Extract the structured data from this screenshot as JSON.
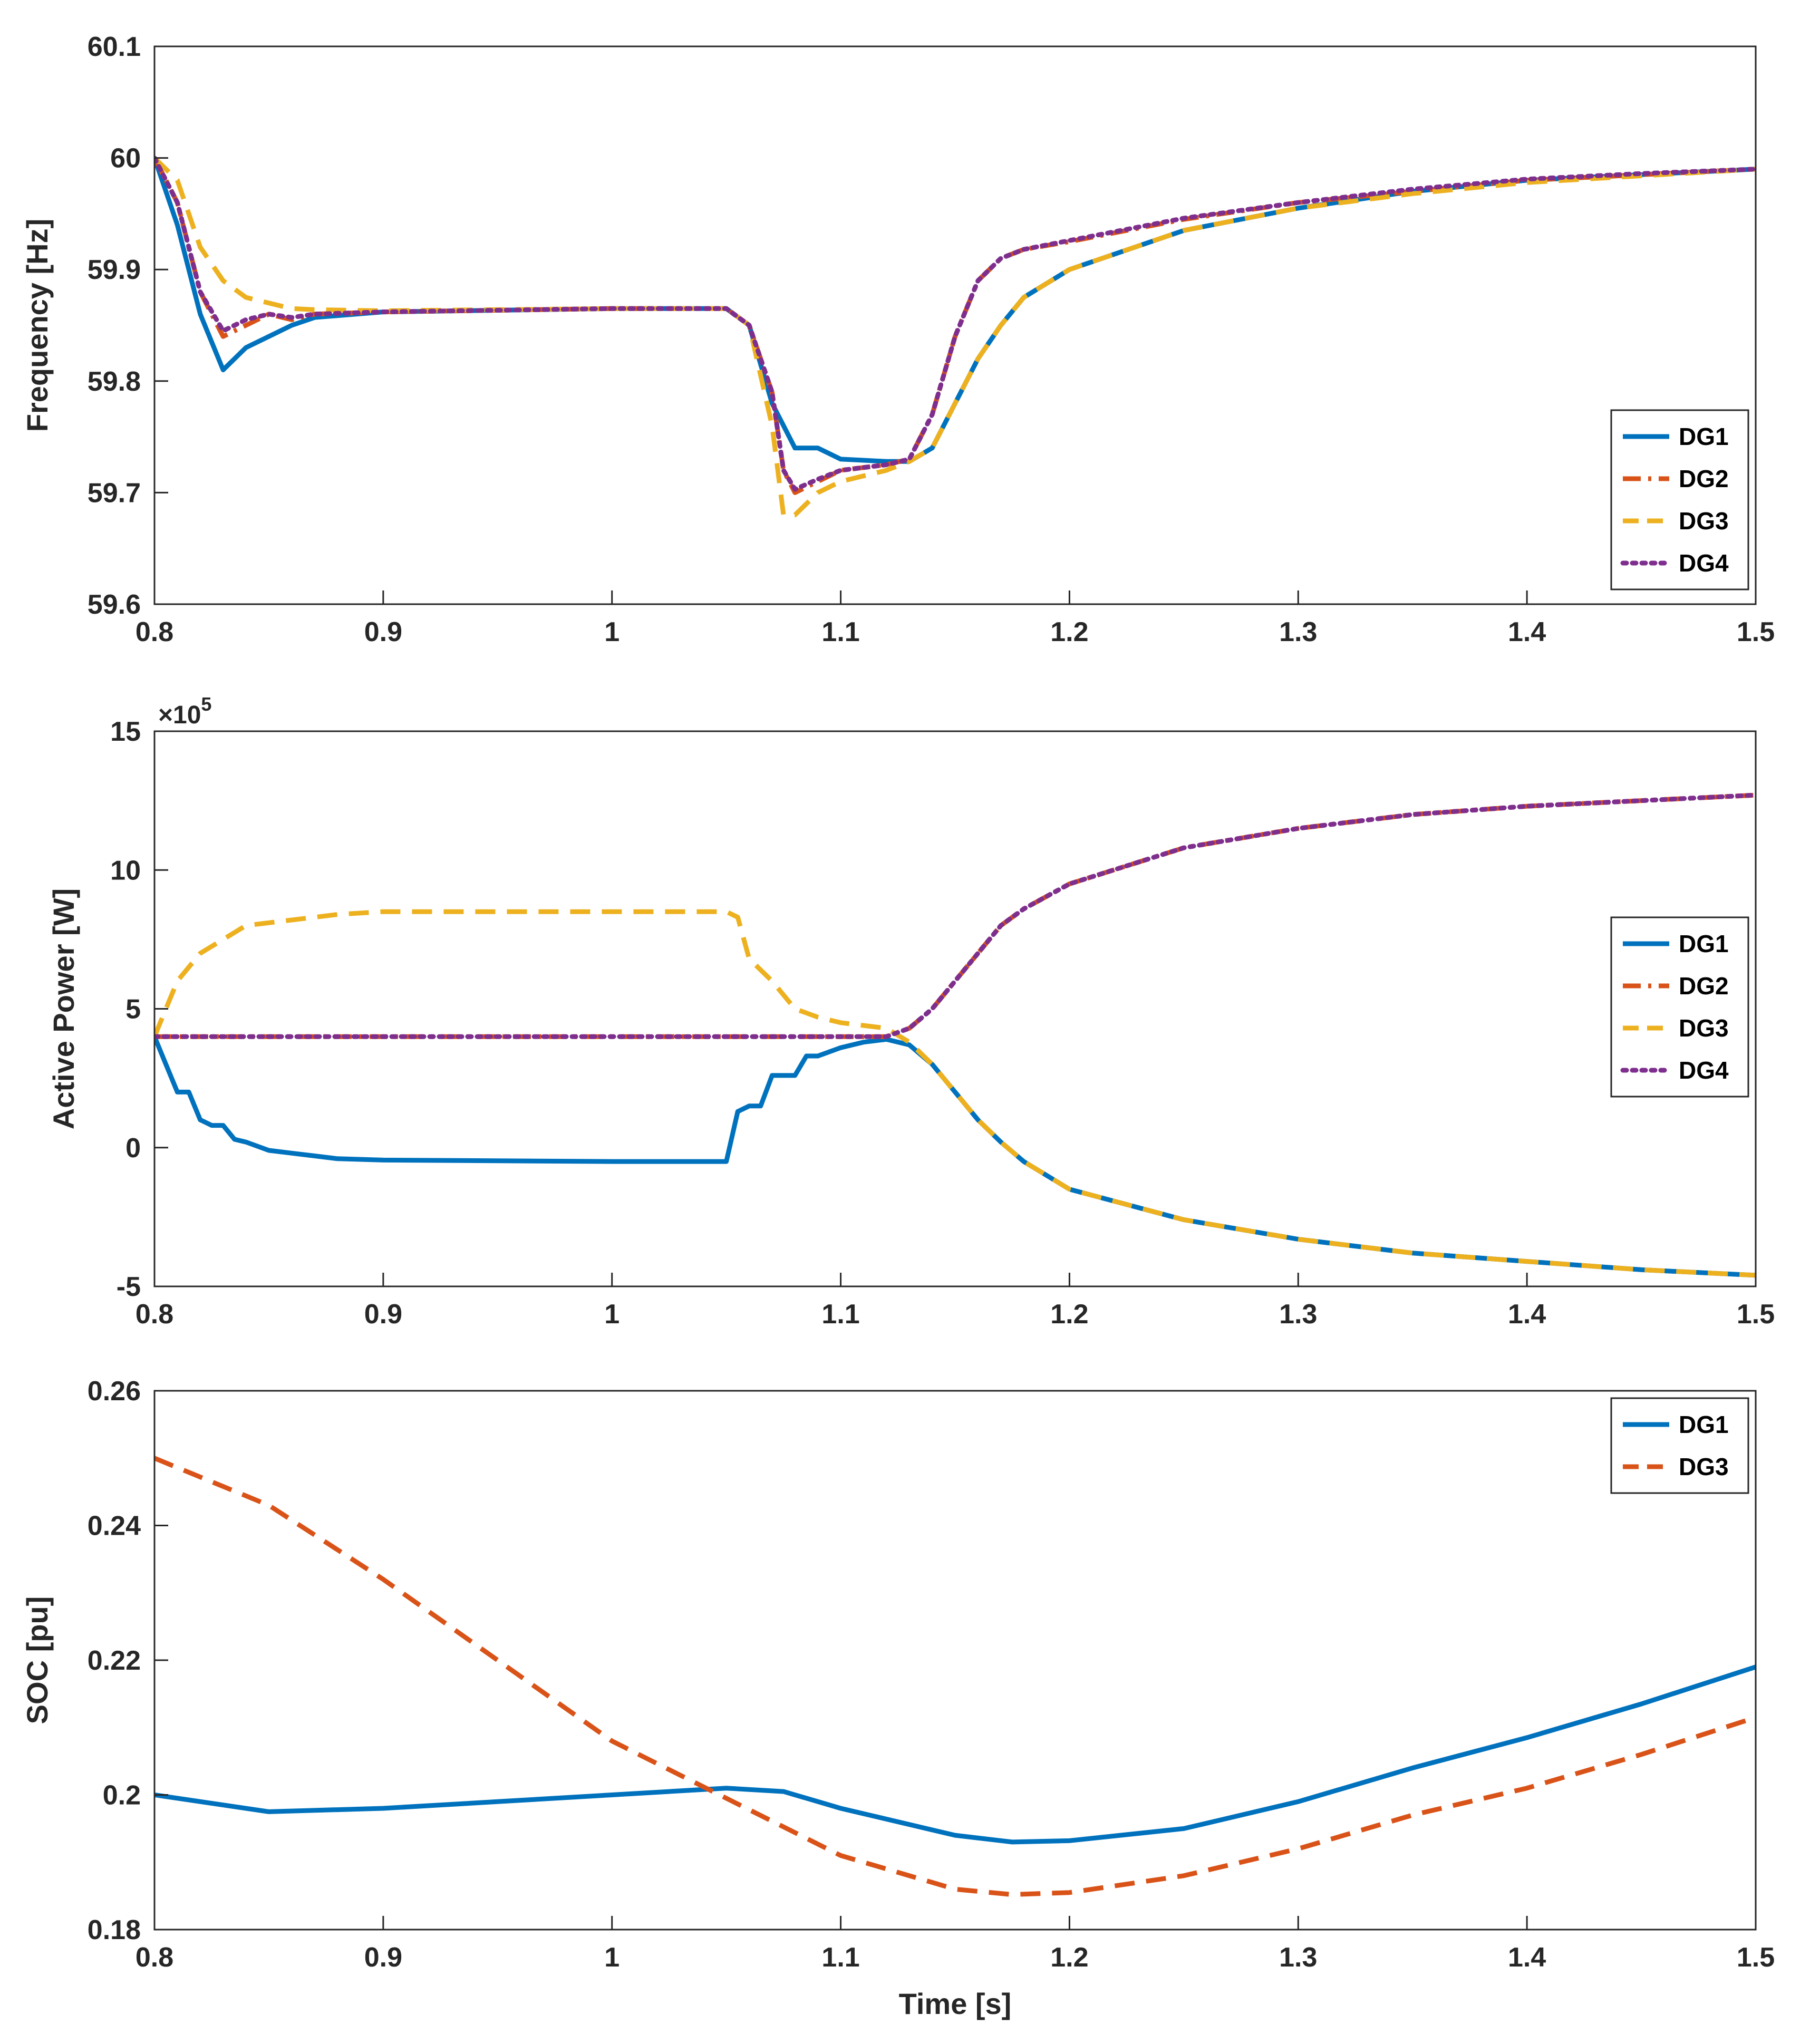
{
  "chart_data": [
    {
      "type": "line",
      "ylabel": "Frequency [Hz]",
      "xlabel": "",
      "xlim": [
        0.8,
        1.5
      ],
      "ylim": [
        59.6,
        60.1
      ],
      "xticks": [
        "0.8",
        "0.9",
        "1",
        "1.1",
        "1.2",
        "1.3",
        "1.4",
        "1.5"
      ],
      "yticks": [
        "59.6",
        "59.7",
        "59.8",
        "59.9",
        "60",
        "60.1"
      ],
      "legend_position": "bottom-right",
      "series": [
        {
          "name": "DG1",
          "color": "#0072BD",
          "style": "solid",
          "x": [
            0.8,
            0.81,
            0.82,
            0.83,
            0.84,
            0.85,
            0.86,
            0.87,
            0.9,
            1.0,
            1.05,
            1.06,
            1.07,
            1.08,
            1.09,
            1.1,
            1.12,
            1.13,
            1.14,
            1.15,
            1.16,
            1.17,
            1.18,
            1.2,
            1.25,
            1.3,
            1.35,
            1.4,
            1.45,
            1.5
          ],
          "y": [
            60.0,
            59.94,
            59.86,
            59.81,
            59.83,
            59.84,
            59.85,
            59.857,
            59.862,
            59.865,
            59.865,
            59.85,
            59.78,
            59.74,
            59.74,
            59.73,
            59.728,
            59.728,
            59.74,
            59.78,
            59.82,
            59.85,
            59.875,
            59.9,
            59.935,
            59.955,
            59.97,
            59.98,
            59.985,
            59.99
          ]
        },
        {
          "name": "DG2",
          "color": "#D95319",
          "style": "dash-dot",
          "x": [
            0.8,
            0.81,
            0.82,
            0.83,
            0.84,
            0.85,
            0.86,
            0.87,
            0.9,
            1.0,
            1.05,
            1.06,
            1.07,
            1.075,
            1.08,
            1.09,
            1.1,
            1.12,
            1.13,
            1.14,
            1.15,
            1.16,
            1.17,
            1.18,
            1.2,
            1.25,
            1.3,
            1.35,
            1.4,
            1.45,
            1.5
          ],
          "y": [
            60.0,
            59.96,
            59.88,
            59.84,
            59.85,
            59.86,
            59.855,
            59.86,
            59.862,
            59.865,
            59.865,
            59.85,
            59.79,
            59.72,
            59.7,
            59.71,
            59.72,
            59.725,
            59.73,
            59.77,
            59.84,
            59.89,
            59.91,
            59.918,
            59.925,
            59.945,
            59.96,
            59.97,
            59.98,
            59.985,
            59.99
          ]
        },
        {
          "name": "DG3",
          "color": "#EDB120",
          "style": "dashed",
          "x": [
            0.8,
            0.81,
            0.82,
            0.83,
            0.84,
            0.85,
            0.86,
            0.87,
            0.9,
            1.0,
            1.05,
            1.06,
            1.07,
            1.075,
            1.08,
            1.09,
            1.1,
            1.12,
            1.13,
            1.14,
            1.15,
            1.16,
            1.17,
            1.18,
            1.2,
            1.25,
            1.3,
            1.35,
            1.4,
            1.45,
            1.5
          ],
          "y": [
            60.0,
            59.98,
            59.92,
            59.89,
            59.875,
            59.87,
            59.865,
            59.864,
            59.863,
            59.865,
            59.865,
            59.85,
            59.76,
            59.68,
            59.68,
            59.7,
            59.71,
            59.72,
            59.728,
            59.74,
            59.78,
            59.82,
            59.85,
            59.875,
            59.9,
            59.935,
            59.955,
            59.968,
            59.978,
            59.984,
            59.99
          ]
        },
        {
          "name": "DG4",
          "color": "#7E2F8E",
          "style": "dotted",
          "x": [
            0.8,
            0.81,
            0.82,
            0.83,
            0.84,
            0.85,
            0.86,
            0.87,
            0.9,
            1.0,
            1.05,
            1.06,
            1.07,
            1.075,
            1.08,
            1.09,
            1.1,
            1.12,
            1.13,
            1.14,
            1.15,
            1.16,
            1.17,
            1.18,
            1.2,
            1.25,
            1.3,
            1.35,
            1.4,
            1.45,
            1.5
          ],
          "y": [
            60.0,
            59.96,
            59.88,
            59.845,
            59.855,
            59.86,
            59.857,
            59.86,
            59.862,
            59.865,
            59.865,
            59.85,
            59.79,
            59.72,
            59.703,
            59.712,
            59.72,
            59.725,
            59.73,
            59.77,
            59.84,
            59.89,
            59.91,
            59.918,
            59.926,
            59.946,
            59.96,
            59.972,
            59.981,
            59.986,
            59.99
          ]
        }
      ]
    },
    {
      "type": "line",
      "ylabel": "Active Power [W]",
      "xlabel": "",
      "exponent_label": "×10",
      "exponent": "5",
      "xlim": [
        0.8,
        1.5
      ],
      "ylim": [
        -5,
        15
      ],
      "xticks": [
        "0.8",
        "0.9",
        "1",
        "1.1",
        "1.2",
        "1.3",
        "1.4",
        "1.5"
      ],
      "yticks": [
        "-5",
        "0",
        "5",
        "10",
        "15"
      ],
      "legend_position": "right",
      "series": [
        {
          "name": "DG1",
          "color": "#0072BD",
          "style": "solid",
          "x": [
            0.8,
            0.805,
            0.81,
            0.815,
            0.82,
            0.825,
            0.83,
            0.835,
            0.84,
            0.85,
            0.86,
            0.87,
            0.88,
            0.9,
            1.0,
            1.05,
            1.055,
            1.06,
            1.065,
            1.07,
            1.075,
            1.08,
            1.085,
            1.09,
            1.1,
            1.11,
            1.12,
            1.13,
            1.14,
            1.15,
            1.16,
            1.17,
            1.18,
            1.2,
            1.25,
            1.3,
            1.35,
            1.4,
            1.45,
            1.5
          ],
          "y": [
            4.0,
            3.0,
            2.0,
            2.0,
            1.0,
            0.8,
            0.8,
            0.3,
            0.2,
            -0.1,
            -0.2,
            -0.3,
            -0.4,
            -0.45,
            -0.5,
            -0.5,
            1.3,
            1.5,
            1.5,
            2.6,
            2.6,
            2.6,
            3.3,
            3.3,
            3.6,
            3.8,
            3.9,
            3.7,
            3.0,
            2.0,
            1.0,
            0.2,
            -0.5,
            -1.5,
            -2.6,
            -3.3,
            -3.8,
            -4.1,
            -4.4,
            -4.6
          ]
        },
        {
          "name": "DG2",
          "color": "#D95319",
          "style": "dash-dot",
          "x": [
            0.8,
            0.9,
            1.0,
            1.05,
            1.1,
            1.12,
            1.13,
            1.14,
            1.15,
            1.16,
            1.17,
            1.18,
            1.2,
            1.25,
            1.3,
            1.35,
            1.4,
            1.45,
            1.5
          ],
          "y": [
            4.0,
            4.0,
            4.0,
            4.0,
            4.0,
            4.0,
            4.3,
            5.0,
            6.0,
            7.0,
            8.0,
            8.6,
            9.5,
            10.8,
            11.5,
            12.0,
            12.3,
            12.5,
            12.7
          ]
        },
        {
          "name": "DG3",
          "color": "#EDB120",
          "style": "dashed",
          "x": [
            0.8,
            0.81,
            0.82,
            0.83,
            0.84,
            0.85,
            0.86,
            0.87,
            0.88,
            0.9,
            1.0,
            1.05,
            1.055,
            1.06,
            1.07,
            1.08,
            1.09,
            1.1,
            1.11,
            1.12,
            1.13,
            1.14,
            1.15,
            1.16,
            1.17,
            1.18,
            1.2,
            1.25,
            1.3,
            1.35,
            1.4,
            1.45,
            1.5
          ],
          "y": [
            4.0,
            6.0,
            7.0,
            7.5,
            8.0,
            8.1,
            8.2,
            8.3,
            8.4,
            8.5,
            8.5,
            8.5,
            8.3,
            6.8,
            6.0,
            5.0,
            4.7,
            4.5,
            4.4,
            4.3,
            3.8,
            3.0,
            2.0,
            1.0,
            0.2,
            -0.5,
            -1.5,
            -2.6,
            -3.3,
            -3.8,
            -4.1,
            -4.4,
            -4.6
          ]
        },
        {
          "name": "DG4",
          "color": "#7E2F8E",
          "style": "dotted",
          "x": [
            0.8,
            0.9,
            1.0,
            1.05,
            1.1,
            1.12,
            1.13,
            1.14,
            1.15,
            1.16,
            1.17,
            1.18,
            1.2,
            1.25,
            1.3,
            1.35,
            1.4,
            1.45,
            1.5
          ],
          "y": [
            4.0,
            4.0,
            4.0,
            4.0,
            4.0,
            4.0,
            4.3,
            5.0,
            6.0,
            7.0,
            8.0,
            8.6,
            9.5,
            10.8,
            11.5,
            12.0,
            12.3,
            12.5,
            12.7
          ]
        }
      ]
    },
    {
      "type": "line",
      "ylabel": "SOC [pu]",
      "xlabel": "Time [s]",
      "xlim": [
        0.8,
        1.5
      ],
      "ylim": [
        0.18,
        0.26
      ],
      "xticks": [
        "0.8",
        "0.9",
        "1",
        "1.1",
        "1.2",
        "1.3",
        "1.4",
        "1.5"
      ],
      "yticks": [
        "0.18",
        "0.2",
        "0.22",
        "0.24",
        "0.26"
      ],
      "legend_position": "top-right",
      "series": [
        {
          "name": "DG1",
          "color": "#0072BD",
          "style": "solid",
          "x": [
            0.8,
            0.85,
            0.9,
            0.95,
            1.0,
            1.05,
            1.075,
            1.1,
            1.15,
            1.175,
            1.2,
            1.25,
            1.3,
            1.35,
            1.4,
            1.45,
            1.5
          ],
          "y": [
            0.2,
            0.1975,
            0.198,
            0.199,
            0.2,
            0.201,
            0.2005,
            0.198,
            0.194,
            0.193,
            0.1932,
            0.195,
            0.199,
            0.204,
            0.2085,
            0.2135,
            0.219
          ]
        },
        {
          "name": "DG3",
          "color": "#D95319",
          "style": "dashed",
          "x": [
            0.8,
            0.85,
            0.9,
            0.95,
            1.0,
            1.05,
            1.1,
            1.15,
            1.175,
            1.2,
            1.25,
            1.3,
            1.35,
            1.4,
            1.45,
            1.5
          ],
          "y": [
            0.25,
            0.243,
            0.232,
            0.22,
            0.208,
            0.1995,
            0.191,
            0.186,
            0.1852,
            0.1855,
            0.188,
            0.192,
            0.197,
            0.201,
            0.206,
            0.2115
          ]
        }
      ]
    }
  ]
}
